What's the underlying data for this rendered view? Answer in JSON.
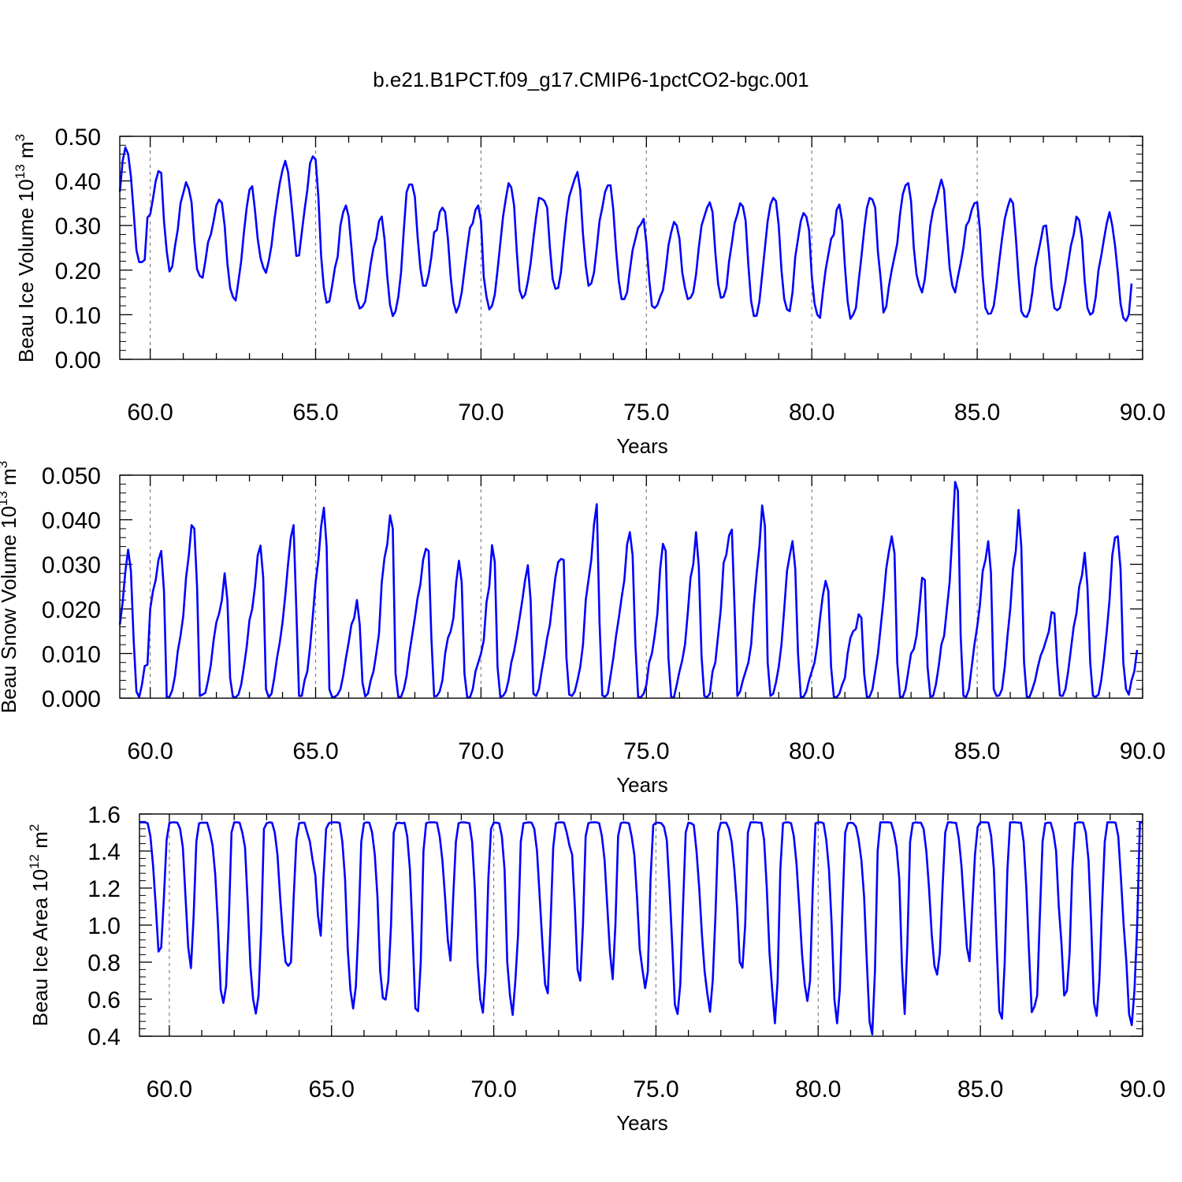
{
  "figure": {
    "title": "b.e21.B1PCT.f09_g17.CMIP6-1pctCO2-bgc.001",
    "line_color": "#0000ff",
    "grid_color": "#808080"
  },
  "chart_data": [
    {
      "type": "line",
      "name": "ice-volume",
      "ylabel": "Beau Ice Volume 10",
      "ylabel_exp": "13",
      "ylabel_unit": "m",
      "ylabel_unit_exp": "3",
      "xlabel": "Years",
      "xlim": [
        59.08,
        90.0
      ],
      "ylim": [
        0.0,
        0.5
      ],
      "x_ticks": [
        "60.0",
        "65.0",
        "70.0",
        "75.0",
        "80.0",
        "85.0",
        "90.0"
      ],
      "y_ticks": [
        "0.00",
        "0.10",
        "0.20",
        "0.30",
        "0.40",
        "0.50"
      ],
      "grid": "vertical dashed at 5-year ticks",
      "x_start": 59.0833,
      "x_step": 0.0833333,
      "values": [
        0.376,
        0.445,
        0.475,
        0.46,
        0.41,
        0.33,
        0.245,
        0.218,
        0.218,
        0.223,
        0.318,
        0.325,
        0.36,
        0.4,
        0.422,
        0.418,
        0.31,
        0.242,
        0.197,
        0.208,
        0.254,
        0.291,
        0.35,
        0.373,
        0.397,
        0.382,
        0.352,
        0.265,
        0.202,
        0.187,
        0.183,
        0.22,
        0.263,
        0.28,
        0.31,
        0.345,
        0.358,
        0.351,
        0.3,
        0.215,
        0.16,
        0.14,
        0.132,
        0.175,
        0.22,
        0.285,
        0.34,
        0.38,
        0.388,
        0.335,
        0.27,
        0.228,
        0.206,
        0.194,
        0.22,
        0.255,
        0.31,
        0.355,
        0.395,
        0.425,
        0.445,
        0.42,
        0.365,
        0.3,
        0.232,
        0.233,
        0.285,
        0.335,
        0.38,
        0.44,
        0.455,
        0.448,
        0.365,
        0.232,
        0.16,
        0.127,
        0.13,
        0.165,
        0.205,
        0.23,
        0.3,
        0.33,
        0.345,
        0.32,
        0.25,
        0.175,
        0.135,
        0.114,
        0.118,
        0.13,
        0.17,
        0.215,
        0.25,
        0.27,
        0.31,
        0.32,
        0.27,
        0.185,
        0.122,
        0.097,
        0.108,
        0.14,
        0.195,
        0.29,
        0.375,
        0.392,
        0.392,
        0.365,
        0.275,
        0.205,
        0.165,
        0.165,
        0.19,
        0.23,
        0.285,
        0.29,
        0.33,
        0.34,
        0.33,
        0.27,
        0.185,
        0.128,
        0.105,
        0.12,
        0.15,
        0.2,
        0.25,
        0.295,
        0.305,
        0.335,
        0.345,
        0.31,
        0.185,
        0.14,
        0.112,
        0.12,
        0.145,
        0.2,
        0.26,
        0.32,
        0.36,
        0.395,
        0.385,
        0.345,
        0.24,
        0.155,
        0.137,
        0.145,
        0.175,
        0.215,
        0.27,
        0.32,
        0.362,
        0.36,
        0.355,
        0.34,
        0.25,
        0.18,
        0.158,
        0.16,
        0.195,
        0.26,
        0.32,
        0.365,
        0.385,
        0.405,
        0.42,
        0.38,
        0.28,
        0.21,
        0.165,
        0.17,
        0.195,
        0.25,
        0.31,
        0.34,
        0.375,
        0.39,
        0.39,
        0.335,
        0.245,
        0.175,
        0.135,
        0.135,
        0.15,
        0.2,
        0.245,
        0.27,
        0.295,
        0.303,
        0.315,
        0.26,
        0.18,
        0.12,
        0.115,
        0.122,
        0.14,
        0.155,
        0.2,
        0.255,
        0.285,
        0.308,
        0.3,
        0.27,
        0.195,
        0.16,
        0.135,
        0.138,
        0.15,
        0.19,
        0.25,
        0.3,
        0.32,
        0.34,
        0.352,
        0.33,
        0.24,
        0.17,
        0.138,
        0.14,
        0.16,
        0.22,
        0.26,
        0.305,
        0.325,
        0.35,
        0.343,
        0.31,
        0.21,
        0.13,
        0.097,
        0.098,
        0.13,
        0.19,
        0.25,
        0.31,
        0.347,
        0.362,
        0.355,
        0.3,
        0.2,
        0.135,
        0.112,
        0.108,
        0.15,
        0.23,
        0.27,
        0.31,
        0.328,
        0.32,
        0.29,
        0.185,
        0.125,
        0.1,
        0.093,
        0.15,
        0.2,
        0.235,
        0.27,
        0.28,
        0.335,
        0.347,
        0.31,
        0.21,
        0.13,
        0.091,
        0.1,
        0.115,
        0.175,
        0.23,
        0.29,
        0.34,
        0.362,
        0.358,
        0.34,
        0.24,
        0.18,
        0.105,
        0.118,
        0.165,
        0.2,
        0.23,
        0.26,
        0.325,
        0.37,
        0.39,
        0.395,
        0.355,
        0.25,
        0.19,
        0.165,
        0.15,
        0.18,
        0.24,
        0.3,
        0.335,
        0.355,
        0.38,
        0.403,
        0.38,
        0.29,
        0.205,
        0.165,
        0.15,
        0.185,
        0.215,
        0.25,
        0.3,
        0.31,
        0.335,
        0.35,
        0.352,
        0.29,
        0.185,
        0.115,
        0.102,
        0.103,
        0.12,
        0.165,
        0.22,
        0.27,
        0.315,
        0.34,
        0.36,
        0.35,
        0.275,
        0.185,
        0.108,
        0.097,
        0.095,
        0.11,
        0.15,
        0.205,
        0.235,
        0.265,
        0.298,
        0.3,
        0.24,
        0.16,
        0.115,
        0.11,
        0.115,
        0.145,
        0.175,
        0.215,
        0.255,
        0.28,
        0.32,
        0.312,
        0.27,
        0.175,
        0.115,
        0.1,
        0.105,
        0.14,
        0.2,
        0.232,
        0.27,
        0.305,
        0.33,
        0.3,
        0.255,
        0.195,
        0.125,
        0.093,
        0.086,
        0.1,
        0.17
      ]
    },
    {
      "type": "line",
      "name": "snow-volume",
      "ylabel": "Beau Snow Volume 10",
      "ylabel_exp": "13",
      "ylabel_unit": "m",
      "ylabel_unit_exp": "3",
      "xlabel": "Years",
      "xlim": [
        59.08,
        90.0
      ],
      "ylim": [
        0.0,
        0.05
      ],
      "x_ticks": [
        "60.0",
        "65.0",
        "70.0",
        "75.0",
        "80.0",
        "85.0",
        "90.0"
      ],
      "y_ticks": [
        "0.000",
        "0.010",
        "0.020",
        "0.030",
        "0.040",
        "0.050"
      ],
      "grid": "vertical dashed at 5-year ticks",
      "x_start": 59.0833,
      "x_step": 0.0833333,
      "values": [
        0.0165,
        0.0215,
        0.0285,
        0.0333,
        0.0285,
        0.013,
        0.0015,
        0.0002,
        0.003,
        0.0072,
        0.0075,
        0.02,
        0.024,
        0.0265,
        0.031,
        0.033,
        0.024,
        0.0002,
        0.0003,
        0.0018,
        0.005,
        0.0105,
        0.014,
        0.0185,
        0.027,
        0.032,
        0.0388,
        0.038,
        0.025,
        0.0005,
        0.0008,
        0.0012,
        0.004,
        0.0075,
        0.013,
        0.017,
        0.019,
        0.022,
        0.028,
        0.022,
        0.0045,
        0.0003,
        0.0002,
        0.0008,
        0.003,
        0.007,
        0.0115,
        0.0175,
        0.02,
        0.025,
        0.032,
        0.0342,
        0.027,
        0.002,
        0.0002,
        0.001,
        0.0045,
        0.009,
        0.0125,
        0.017,
        0.023,
        0.03,
        0.036,
        0.0388,
        0.02,
        0.0005,
        0.0005,
        0.004,
        0.006,
        0.0115,
        0.0185,
        0.026,
        0.031,
        0.0385,
        0.0427,
        0.034,
        0.002,
        0.0002,
        0.0003,
        0.0008,
        0.002,
        0.005,
        0.009,
        0.0125,
        0.0165,
        0.018,
        0.022,
        0.0165,
        0.0035,
        0.0004,
        0.001,
        0.004,
        0.006,
        0.01,
        0.0145,
        0.026,
        0.0315,
        0.0345,
        0.041,
        0.038,
        0.0055,
        0.0003,
        0.0003,
        0.002,
        0.005,
        0.01,
        0.014,
        0.018,
        0.0225,
        0.0255,
        0.031,
        0.0335,
        0.033,
        0.0135,
        0.0004,
        0.0005,
        0.0015,
        0.004,
        0.01,
        0.0135,
        0.015,
        0.018,
        0.026,
        0.0308,
        0.026,
        0.0055,
        0.0002,
        0.0002,
        0.002,
        0.006,
        0.008,
        0.01,
        0.013,
        0.0215,
        0.025,
        0.0343,
        0.0305,
        0.007,
        0.0003,
        0.0005,
        0.0015,
        0.004,
        0.008,
        0.0105,
        0.014,
        0.018,
        0.022,
        0.0265,
        0.0298,
        0.022,
        0.001,
        0.0005,
        0.002,
        0.006,
        0.0095,
        0.0135,
        0.0165,
        0.022,
        0.0272,
        0.0305,
        0.0312,
        0.031,
        0.009,
        0.0008,
        0.0005,
        0.0015,
        0.004,
        0.007,
        0.012,
        0.022,
        0.0265,
        0.031,
        0.039,
        0.0435,
        0.017,
        0.0006,
        0.0003,
        0.001,
        0.005,
        0.009,
        0.014,
        0.018,
        0.0225,
        0.0265,
        0.0345,
        0.0372,
        0.032,
        0.012,
        0.0003,
        0.0002,
        0.001,
        0.003,
        0.008,
        0.01,
        0.014,
        0.019,
        0.029,
        0.0346,
        0.033,
        0.009,
        0.0002,
        0.0002,
        0.003,
        0.006,
        0.0085,
        0.012,
        0.019,
        0.027,
        0.03,
        0.0372,
        0.0295,
        0.0095,
        0.0005,
        0.0002,
        0.001,
        0.006,
        0.008,
        0.014,
        0.02,
        0.0303,
        0.0322,
        0.0365,
        0.0378,
        0.02,
        0.0005,
        0.0015,
        0.004,
        0.006,
        0.008,
        0.012,
        0.021,
        0.028,
        0.034,
        0.0432,
        0.0385,
        0.008,
        0.0005,
        0.001,
        0.0035,
        0.007,
        0.012,
        0.02,
        0.0285,
        0.032,
        0.0352,
        0.029,
        0.01,
        0.0003,
        0.0003,
        0.0015,
        0.004,
        0.006,
        0.008,
        0.012,
        0.018,
        0.023,
        0.0263,
        0.024,
        0.007,
        0.0003,
        0.0002,
        0.001,
        0.003,
        0.0045,
        0.01,
        0.0135,
        0.015,
        0.0155,
        0.0188,
        0.018,
        0.0055,
        0.0002,
        0.0004,
        0.002,
        0.006,
        0.01,
        0.016,
        0.022,
        0.029,
        0.033,
        0.0363,
        0.0325,
        0.008,
        0.0003,
        0.0003,
        0.002,
        0.006,
        0.01,
        0.011,
        0.014,
        0.02,
        0.027,
        0.0265,
        0.007,
        0.0003,
        0.0005,
        0.003,
        0.007,
        0.012,
        0.014,
        0.02,
        0.026,
        0.037,
        0.0485,
        0.0465,
        0.014,
        0.0005,
        0.0003,
        0.002,
        0.007,
        0.012,
        0.016,
        0.021,
        0.0285,
        0.031,
        0.0352,
        0.028,
        0.002,
        0.0005,
        0.0006,
        0.002,
        0.007,
        0.014,
        0.02,
        0.029,
        0.033,
        0.0422,
        0.034,
        0.008,
        0.0003,
        0.0003,
        0.002,
        0.004,
        0.007,
        0.0095,
        0.011,
        0.013,
        0.015,
        0.0193,
        0.019,
        0.008,
        0.0006,
        0.0005,
        0.002,
        0.006,
        0.011,
        0.016,
        0.019,
        0.025,
        0.0275,
        0.0326,
        0.025,
        0.008,
        0.0005,
        0.0003,
        0.0008,
        0.004,
        0.009,
        0.015,
        0.022,
        0.032,
        0.036,
        0.0363,
        0.029,
        0.008,
        0.002,
        0.0008,
        0.004,
        0.006,
        0.0108
      ]
    },
    {
      "type": "line",
      "name": "ice-area",
      "ylabel": "Beau Ice Area 10",
      "ylabel_exp": "12",
      "ylabel_unit": "m",
      "ylabel_unit_exp": "2",
      "xlabel": "Years",
      "xlim": [
        59.08,
        90.0
      ],
      "ylim": [
        0.4,
        1.6
      ],
      "x_ticks": [
        "60.0",
        "65.0",
        "70.0",
        "75.0",
        "80.0",
        "85.0",
        "90.0"
      ],
      "y_ticks": [
        "0.4",
        "0.6",
        "0.8",
        "1.0",
        "1.2",
        "1.4",
        "1.6"
      ],
      "grid": "vertical dashed at 5-year ticks",
      "x_start": 59.0833,
      "x_step": 0.0833333,
      "values": [
        1.555,
        1.555,
        1.555,
        1.55,
        1.48,
        1.32,
        1.1,
        0.857,
        0.88,
        1.15,
        1.46,
        1.55,
        1.555,
        1.555,
        1.553,
        1.52,
        1.42,
        1.15,
        0.88,
        0.768,
        1.05,
        1.45,
        1.55,
        1.553,
        1.553,
        1.553,
        1.5,
        1.43,
        1.27,
        1.0,
        0.65,
        0.58,
        0.67,
        1.02,
        1.5,
        1.555,
        1.555,
        1.553,
        1.5,
        1.42,
        1.12,
        0.78,
        0.6,
        0.522,
        0.62,
        0.98,
        1.52,
        1.55,
        1.555,
        1.553,
        1.5,
        1.38,
        1.15,
        0.95,
        0.8,
        0.78,
        0.8,
        1.15,
        1.46,
        1.55,
        1.553,
        1.553,
        1.5,
        1.45,
        1.35,
        1.27,
        1.05,
        0.943,
        1.25,
        1.52,
        1.55,
        1.555,
        1.555,
        1.555,
        1.552,
        1.45,
        1.25,
        0.87,
        0.648,
        0.55,
        0.67,
        1.0,
        1.45,
        1.55,
        1.555,
        1.553,
        1.5,
        1.38,
        1.15,
        0.75,
        0.607,
        0.598,
        0.7,
        1.0,
        1.5,
        1.55,
        1.553,
        1.55,
        1.553,
        1.48,
        1.3,
        0.95,
        0.55,
        0.535,
        0.8,
        1.4,
        1.55,
        1.555,
        1.555,
        1.555,
        1.553,
        1.48,
        1.35,
        1.15,
        0.92,
        0.808,
        1.15,
        1.45,
        1.55,
        1.555,
        1.555,
        1.553,
        1.55,
        1.45,
        1.2,
        0.8,
        0.6,
        0.527,
        0.75,
        1.25,
        1.52,
        1.553,
        1.553,
        1.55,
        1.48,
        1.3,
        0.8,
        0.62,
        0.515,
        0.7,
        0.95,
        1.45,
        1.55,
        1.553,
        1.555,
        1.553,
        1.52,
        1.4,
        1.15,
        0.9,
        0.68,
        0.632,
        1.0,
        1.42,
        1.55,
        1.555,
        1.555,
        1.553,
        1.5,
        1.43,
        1.38,
        1.1,
        0.76,
        0.7,
        1.0,
        1.48,
        1.55,
        1.555,
        1.555,
        1.555,
        1.55,
        1.48,
        1.35,
        1.1,
        0.85,
        0.708,
        1.0,
        1.48,
        1.55,
        1.555,
        1.553,
        1.55,
        1.48,
        1.38,
        1.15,
        0.87,
        0.76,
        0.66,
        0.75,
        1.25,
        1.54,
        1.553,
        1.553,
        1.55,
        1.53,
        1.46,
        1.2,
        0.9,
        0.57,
        0.52,
        0.68,
        1.1,
        1.5,
        1.553,
        1.55,
        1.54,
        1.4,
        1.2,
        0.95,
        0.75,
        0.63,
        0.532,
        0.7,
        1.05,
        1.5,
        1.553,
        1.553,
        1.553,
        1.52,
        1.45,
        1.3,
        1.1,
        0.8,
        0.77,
        1.0,
        1.5,
        1.555,
        1.555,
        1.555,
        1.553,
        1.553,
        1.46,
        1.2,
        0.85,
        0.65,
        0.47,
        0.7,
        1.3,
        1.55,
        1.555,
        1.555,
        1.55,
        1.48,
        1.33,
        1.1,
        0.85,
        0.68,
        0.59,
        0.7,
        1.2,
        1.55,
        1.555,
        1.555,
        1.55,
        1.46,
        1.3,
        1.0,
        0.6,
        0.47,
        0.65,
        1.1,
        1.5,
        1.55,
        1.553,
        1.55,
        1.53,
        1.46,
        1.35,
        1.15,
        0.8,
        0.48,
        0.41,
        0.75,
        1.4,
        1.555,
        1.555,
        1.555,
        1.555,
        1.553,
        1.5,
        1.42,
        1.25,
        0.78,
        0.52,
        0.9,
        1.45,
        1.55,
        1.555,
        1.553,
        1.553,
        1.52,
        1.4,
        1.2,
        0.95,
        0.78,
        0.733,
        0.85,
        1.2,
        1.5,
        1.555,
        1.555,
        1.553,
        1.552,
        1.47,
        1.32,
        1.1,
        0.88,
        0.805,
        1.1,
        1.38,
        1.53,
        1.555,
        1.555,
        1.555,
        1.553,
        1.48,
        1.3,
        0.9,
        0.535,
        0.495,
        0.8,
        1.3,
        1.555,
        1.555,
        1.555,
        1.553,
        1.553,
        1.45,
        1.2,
        0.85,
        0.53,
        0.56,
        0.62,
        1.05,
        1.45,
        1.55,
        1.553,
        1.553,
        1.5,
        1.4,
        1.1,
        0.9,
        0.62,
        0.645,
        0.85,
        1.3,
        1.55,
        1.555,
        1.555,
        1.553,
        1.5,
        1.35,
        1.0,
        0.58,
        0.51,
        0.7,
        1.1,
        1.45,
        1.555,
        1.555,
        1.555,
        1.553,
        1.48,
        1.25,
        1.0,
        0.8,
        0.52,
        0.46,
        0.65,
        1.0,
        1.555,
        1.555
      ]
    }
  ]
}
